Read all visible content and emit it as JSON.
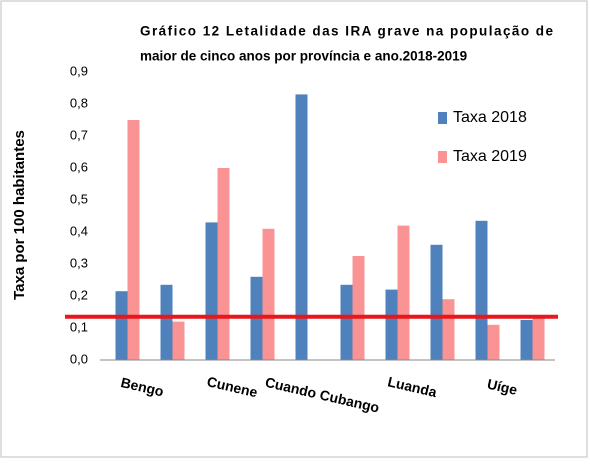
{
  "chart_data": {
    "type": "bar",
    "title": [
      "Gráfico 12 Letalidade das IRA grave na população de",
      "maior de cinco anos por província e ano.2018-2019"
    ],
    "y_label": "Taxa por 100 habitantes",
    "categories": [
      "Bengo",
      null,
      "Cunene",
      null,
      "Cuando Cubango",
      null,
      "Luanda",
      null,
      "Uíge",
      null
    ],
    "series": [
      {
        "name": "Taxa 2018",
        "color": "#4f81bd",
        "values": [
          0.215,
          0.235,
          0.43,
          0.26,
          0.83,
          0.235,
          0.22,
          0.36,
          0.435,
          0.125
        ]
      },
      {
        "name": "Taxa 2019",
        "color": "#fa9494",
        "values": [
          0.75,
          0.12,
          0.6,
          0.41,
          null,
          0.325,
          0.42,
          0.19,
          0.11,
          0.14
        ]
      }
    ],
    "reference_line": {
      "value": 0.135,
      "color": "#e8171c"
    },
    "ylim": [
      0,
      0.9
    ],
    "yticks": [
      {
        "value": 0,
        "label": "0,0"
      },
      {
        "value": 0.1,
        "label": "0,1"
      },
      {
        "value": 0.2,
        "label": "0,2"
      },
      {
        "value": 0.3,
        "label": "0,3"
      },
      {
        "value": 0.4,
        "label": "0,4"
      },
      {
        "value": 0.5,
        "label": "0,5"
      },
      {
        "value": 0.6,
        "label": "0,6"
      },
      {
        "value": 0.7,
        "label": "0,7"
      },
      {
        "value": 0.8,
        "label": "0,8"
      },
      {
        "value": 0.9,
        "label": "0,9"
      }
    ],
    "grid": false,
    "legend": "right"
  }
}
